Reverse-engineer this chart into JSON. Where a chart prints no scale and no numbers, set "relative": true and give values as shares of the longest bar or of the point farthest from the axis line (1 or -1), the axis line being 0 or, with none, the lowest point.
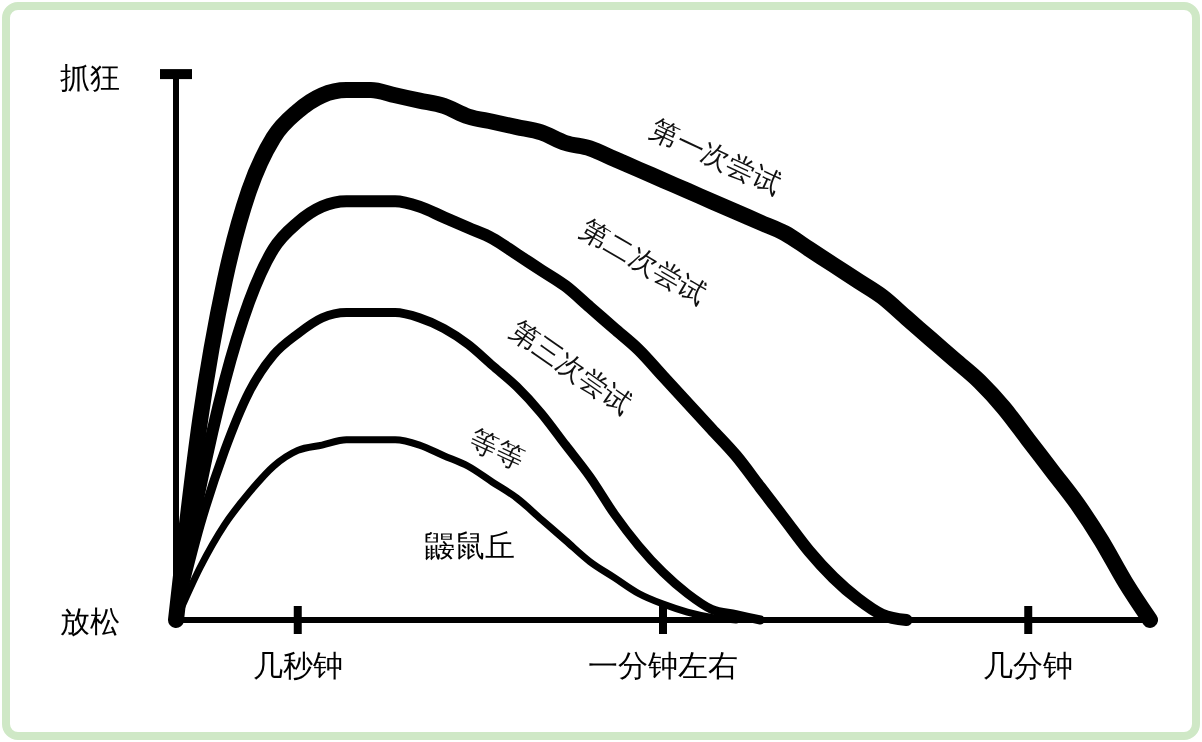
{
  "chart_data": {
    "type": "line",
    "relative": true,
    "marker": "none",
    "line_style": "solid",
    "legend": false,
    "grid": false,
    "categories": [
      null,
      null,
      null,
      null,
      null,
      "几秒钟",
      null,
      null,
      null,
      null,
      null,
      null,
      null,
      null,
      null,
      null,
      null,
      null,
      null,
      null,
      "一分钟左右",
      null,
      null,
      null,
      null,
      null,
      null,
      null,
      null,
      null,
      null,
      null,
      null,
      null,
      null,
      "几分钟",
      null,
      null,
      null,
      null,
      null
    ],
    "series": [
      {
        "name": "第一次尝试",
        "color": "#000000",
        "values": [
          0,
          0.38,
          0.64,
          0.81,
          0.91,
          0.96,
          0.99,
          1,
          1,
          0.99,
          0.98,
          0.97,
          0.95,
          0.94,
          0.93,
          0.92,
          0.9,
          0.89,
          0.87,
          0.85,
          0.83,
          0.81,
          0.79,
          0.77,
          0.75,
          0.73,
          0.7,
          0.67,
          0.64,
          0.61,
          0.57,
          0.53,
          0.49,
          0.45,
          0.4,
          0.34,
          0.28,
          0.22,
          0.15,
          0.07,
          0
        ]
      },
      {
        "name": "第二次尝试",
        "color": "#000000",
        "values": [
          0,
          0.25,
          0.45,
          0.6,
          0.7,
          0.75,
          0.78,
          0.79,
          0.79,
          0.79,
          0.78,
          0.76,
          0.74,
          0.72,
          0.69,
          0.66,
          0.63,
          0.59,
          0.55,
          0.51,
          0.46,
          0.41,
          0.36,
          0.31,
          0.25,
          0.19,
          0.13,
          0.08,
          0.04,
          0.01,
          0,
          null,
          null,
          null,
          null,
          null,
          null,
          null,
          null,
          null,
          null
        ]
      },
      {
        "name": "第三次尝试",
        "color": "#000000",
        "values": [
          0,
          0.18,
          0.32,
          0.43,
          0.5,
          0.54,
          0.57,
          0.58,
          0.58,
          0.58,
          0.57,
          0.55,
          0.52,
          0.48,
          0.44,
          0.39,
          0.33,
          0.27,
          0.2,
          0.14,
          0.09,
          0.05,
          0.02,
          0.01,
          0,
          null,
          null,
          null,
          null,
          null,
          null,
          null,
          null,
          null,
          null,
          null,
          null,
          null,
          null,
          null,
          null
        ]
      },
      {
        "name": "等等",
        "color": "#000000",
        "values": [
          0,
          0.1,
          0.18,
          0.24,
          0.29,
          0.32,
          0.33,
          0.34,
          0.34,
          0.34,
          0.33,
          0.31,
          0.29,
          0.26,
          0.23,
          0.19,
          0.15,
          0.11,
          0.08,
          0.05,
          0.03,
          0.015,
          0.005,
          0,
          null,
          null,
          null,
          null,
          null,
          null,
          null,
          null,
          null,
          null,
          null,
          null,
          null,
          null,
          null,
          null,
          null
        ]
      }
    ],
    "annotations": [
      "抓狂",
      "放松",
      "鼹鼠丘"
    ]
  }
}
